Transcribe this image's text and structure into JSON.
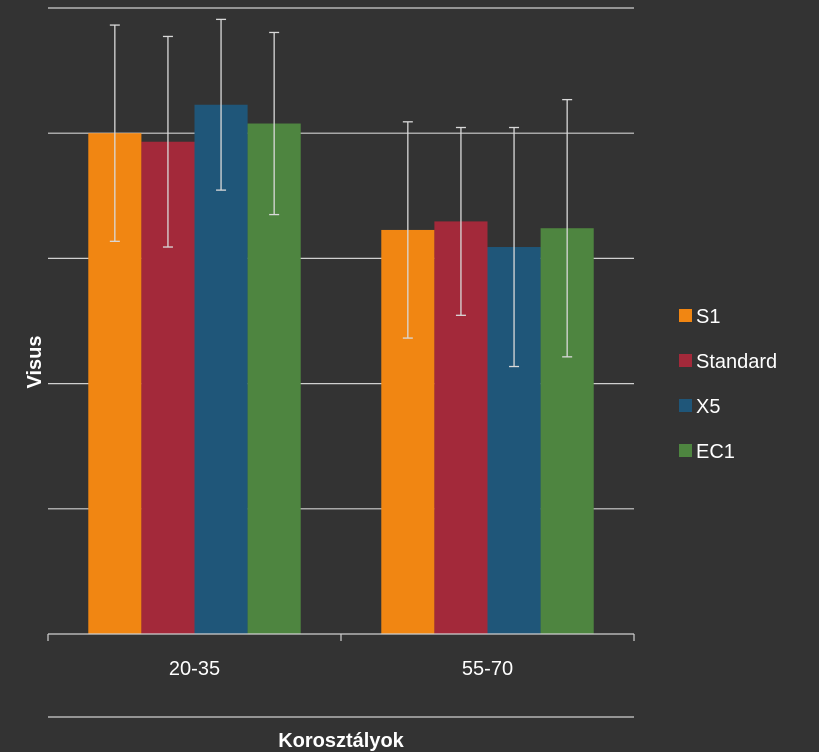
{
  "chart_data": {
    "type": "bar",
    "title": "",
    "xlabel": "Korosztályok",
    "ylabel": "Visus",
    "categories": [
      "20-35",
      "55-70"
    ],
    "ylim": [
      0,
      1.1
    ],
    "grid": true,
    "legend_position": "right",
    "series": [
      {
        "name": "S1",
        "color": "#f18612",
        "values": [
          0.88,
          0.71
        ],
        "errors": [
          0.19,
          0.19
        ]
      },
      {
        "name": "Standard",
        "color": "#a3293a",
        "values": [
          0.865,
          0.725
        ],
        "errors": [
          0.185,
          0.165
        ]
      },
      {
        "name": "X5",
        "color": "#1f5679",
        "values": [
          0.93,
          0.68
        ],
        "errors": [
          0.15,
          0.21
        ]
      },
      {
        "name": "EC1",
        "color": "#4e8540",
        "values": [
          0.897,
          0.713
        ],
        "errors": [
          0.16,
          0.226
        ]
      }
    ]
  }
}
